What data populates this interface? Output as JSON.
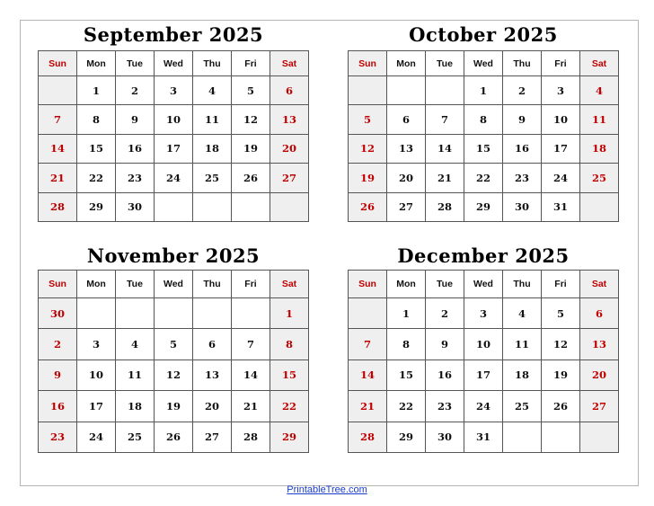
{
  "weekdays": [
    "Sun",
    "Mon",
    "Tue",
    "Wed",
    "Thu",
    "Fri",
    "Sat"
  ],
  "colors": {
    "weekend_text": "#c00000",
    "weekend_bg": "#efefef",
    "link": "#1a3dcc"
  },
  "months": [
    {
      "title": "September 2025",
      "weeks": [
        [
          "",
          "1",
          "2",
          "3",
          "4",
          "5",
          "6"
        ],
        [
          "7",
          "8",
          "9",
          "10",
          "11",
          "12",
          "13"
        ],
        [
          "14",
          "15",
          "16",
          "17",
          "18",
          "19",
          "20"
        ],
        [
          "21",
          "22",
          "23",
          "24",
          "25",
          "26",
          "27"
        ],
        [
          "28",
          "29",
          "30",
          "",
          "",
          "",
          ""
        ]
      ]
    },
    {
      "title": "October 2025",
      "weeks": [
        [
          "",
          "",
          "",
          "1",
          "2",
          "3",
          "4"
        ],
        [
          "5",
          "6",
          "7",
          "8",
          "9",
          "10",
          "11"
        ],
        [
          "12",
          "13",
          "14",
          "15",
          "16",
          "17",
          "18"
        ],
        [
          "19",
          "20",
          "21",
          "22",
          "23",
          "24",
          "25"
        ],
        [
          "26",
          "27",
          "28",
          "29",
          "30",
          "31",
          ""
        ]
      ]
    },
    {
      "title": "November 2025",
      "weeks": [
        [
          "30",
          "",
          "",
          "",
          "",
          "",
          "1"
        ],
        [
          "2",
          "3",
          "4",
          "5",
          "6",
          "7",
          "8"
        ],
        [
          "9",
          "10",
          "11",
          "12",
          "13",
          "14",
          "15"
        ],
        [
          "16",
          "17",
          "18",
          "19",
          "20",
          "21",
          "22"
        ],
        [
          "23",
          "24",
          "25",
          "26",
          "27",
          "28",
          "29"
        ]
      ]
    },
    {
      "title": "December 2025",
      "weeks": [
        [
          "",
          "1",
          "2",
          "3",
          "4",
          "5",
          "6"
        ],
        [
          "7",
          "8",
          "9",
          "10",
          "11",
          "12",
          "13"
        ],
        [
          "14",
          "15",
          "16",
          "17",
          "18",
          "19",
          "20"
        ],
        [
          "21",
          "22",
          "23",
          "24",
          "25",
          "26",
          "27"
        ],
        [
          "28",
          "29",
          "30",
          "31",
          "",
          "",
          ""
        ]
      ]
    }
  ],
  "footer": {
    "link": "PrintableTree.com"
  }
}
